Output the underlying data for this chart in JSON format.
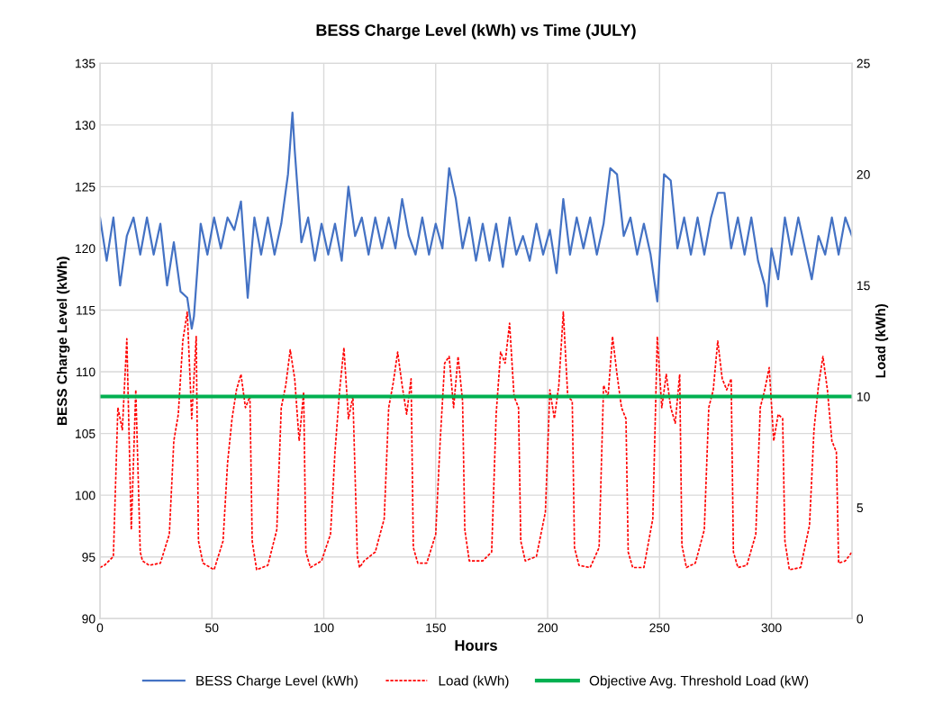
{
  "chart_data": {
    "type": "line",
    "title": "BESS Charge Level (kWh) vs Time (JULY)",
    "xlabel": "Hours",
    "ylabel": "BESS Charge Level (kWh)",
    "y2label": "Load (kWh)",
    "xlim": [
      0,
      336
    ],
    "xticks": [
      0,
      50,
      100,
      150,
      200,
      250,
      300
    ],
    "ylim": [
      90,
      135
    ],
    "yticks": [
      90,
      95,
      100,
      105,
      110,
      115,
      120,
      125,
      130,
      135
    ],
    "y2lim": [
      0,
      25
    ],
    "y2ticks": [
      0,
      5,
      10,
      15,
      20,
      25
    ],
    "grid": true,
    "legend": "bottom",
    "marker": "none",
    "series": [
      {
        "name": "BESS Charge Level (kWh)",
        "color": "#4472c4",
        "line_style": "solid",
        "x": [
          0,
          3,
          6,
          9,
          12,
          15,
          18,
          21,
          24,
          27,
          30,
          33,
          36,
          39,
          41,
          42,
          45,
          48,
          51,
          54,
          57,
          60,
          63,
          66,
          69,
          72,
          75,
          78,
          81,
          84,
          86,
          87,
          90,
          93,
          96,
          99,
          102,
          105,
          108,
          111,
          114,
          117,
          120,
          123,
          126,
          129,
          132,
          135,
          138,
          141,
          144,
          147,
          150,
          153,
          156,
          159,
          162,
          165,
          168,
          171,
          174,
          177,
          180,
          183,
          186,
          189,
          192,
          195,
          198,
          201,
          204,
          207,
          210,
          213,
          216,
          219,
          222,
          225,
          228,
          231,
          234,
          237,
          240,
          243,
          246,
          249,
          252,
          255,
          258,
          261,
          264,
          267,
          270,
          273,
          276,
          279,
          282,
          285,
          288,
          291,
          294,
          297,
          298,
          300,
          303,
          306,
          309,
          312,
          315,
          318,
          321,
          324,
          327,
          330,
          333,
          336
        ],
        "values": [
          122.5,
          119,
          122.5,
          117,
          121,
          122.5,
          119.5,
          122.5,
          119.5,
          122,
          117,
          120.5,
          116.5,
          116,
          113.5,
          114.5,
          122,
          119.5,
          122.5,
          120,
          122.5,
          121.5,
          123.8,
          116,
          122.5,
          119.5,
          122.5,
          119.5,
          122,
          126,
          131,
          128,
          120.5,
          122.5,
          119,
          122,
          119.5,
          122,
          119,
          125,
          121,
          122.5,
          119.5,
          122.5,
          120,
          122.5,
          120,
          124,
          121,
          119.5,
          122.5,
          119.5,
          122,
          120,
          126.5,
          124,
          120,
          122.5,
          119,
          122,
          119,
          122,
          118.5,
          122.5,
          119.5,
          121,
          119,
          122,
          119.5,
          121.5,
          118,
          124,
          119.5,
          122.5,
          120,
          122.5,
          119.5,
          122,
          126.5,
          126,
          121,
          122.5,
          119.5,
          122,
          119.5,
          115.7,
          126,
          125.5,
          120,
          122.5,
          119.5,
          122.5,
          119.5,
          122.5,
          124.5,
          124.5,
          120,
          122.5,
          119.5,
          122.5,
          119,
          117,
          115.3,
          120,
          117.5,
          122.5,
          119.5,
          122.5,
          120,
          117.5,
          121,
          119.5,
          122.5,
          119.5,
          122.5,
          121
        ]
      },
      {
        "name": "Load (kWh)",
        "color": "#ff0000",
        "line_style": "dashed",
        "axis": "y2",
        "x": [
          0,
          2,
          6,
          8,
          10,
          12,
          14,
          16,
          18,
          19,
          22,
          27,
          31,
          33,
          35,
          37,
          39,
          41,
          43,
          44,
          46,
          51,
          55,
          57,
          59,
          61,
          63,
          65,
          67,
          68,
          70,
          75,
          79,
          81,
          83,
          85,
          87,
          89,
          91,
          92,
          94,
          99,
          103,
          105,
          107,
          109,
          111,
          113,
          115,
          116,
          118,
          123,
          127,
          129,
          131,
          133,
          135,
          137,
          139,
          140,
          142,
          146,
          150,
          152,
          154,
          156,
          158,
          160,
          162,
          163,
          165,
          171,
          175,
          177,
          179,
          181,
          183,
          185,
          187,
          188,
          190,
          195,
          199,
          201,
          203,
          205,
          207,
          209,
          211,
          212,
          214,
          219,
          223,
          225,
          227,
          229,
          231,
          233,
          235,
          236,
          238,
          243,
          247,
          249,
          251,
          253,
          255,
          257,
          259,
          260,
          262,
          266,
          270,
          272,
          274,
          276,
          278,
          280,
          282,
          283,
          285,
          289,
          293,
          295,
          297,
          299,
          301,
          303,
          305,
          306,
          308,
          313,
          317,
          319,
          321,
          323,
          325,
          327,
          329,
          330,
          333,
          336
        ],
        "values": [
          2.3,
          2.4,
          2.8,
          9.5,
          8.5,
          12.6,
          4,
          10.3,
          3,
          2.6,
          2.4,
          2.5,
          3.8,
          8,
          9.2,
          12.5,
          13.8,
          9,
          12.7,
          3.5,
          2.5,
          2.2,
          3.5,
          7,
          9,
          10.3,
          11,
          9.5,
          10,
          3.5,
          2.2,
          2.4,
          4,
          9.5,
          10.5,
          12.1,
          10.8,
          8,
          10.2,
          3,
          2.3,
          2.6,
          3.8,
          7.5,
          10.2,
          12.2,
          9,
          10,
          2.8,
          2.3,
          2.6,
          3,
          4.5,
          9.5,
          10.6,
          12,
          10.5,
          9.2,
          10.8,
          3.2,
          2.5,
          2.5,
          3.8,
          8,
          11.5,
          11.8,
          9.5,
          11.8,
          9.8,
          4,
          2.6,
          2.6,
          3,
          9.2,
          12,
          11.5,
          13.3,
          10,
          9.5,
          3.5,
          2.6,
          2.8,
          4.8,
          10.3,
          9,
          10.5,
          13.8,
          10,
          9.8,
          3.2,
          2.4,
          2.3,
          3.2,
          10.5,
          10,
          12.7,
          11,
          9.5,
          9,
          3,
          2.3,
          2.3,
          4.5,
          12.7,
          9.5,
          11,
          9.5,
          8.8,
          11,
          3.3,
          2.3,
          2.5,
          4,
          9.5,
          10.3,
          12.5,
          10.8,
          10.3,
          10.8,
          3,
          2.3,
          2.4,
          3.8,
          9.5,
          10.3,
          11.3,
          8,
          9.2,
          9,
          3.5,
          2.2,
          2.3,
          4.2,
          8.5,
          10.5,
          11.8,
          10.3,
          8,
          7.5,
          2.5,
          2.6,
          3
        ]
      }
    ],
    "ref_lines": [
      {
        "axis": "y2",
        "value": 10,
        "label": "Objective Avg. Threshold Load (kW)",
        "color": "#00b050",
        "line_style": "solid"
      }
    ]
  }
}
